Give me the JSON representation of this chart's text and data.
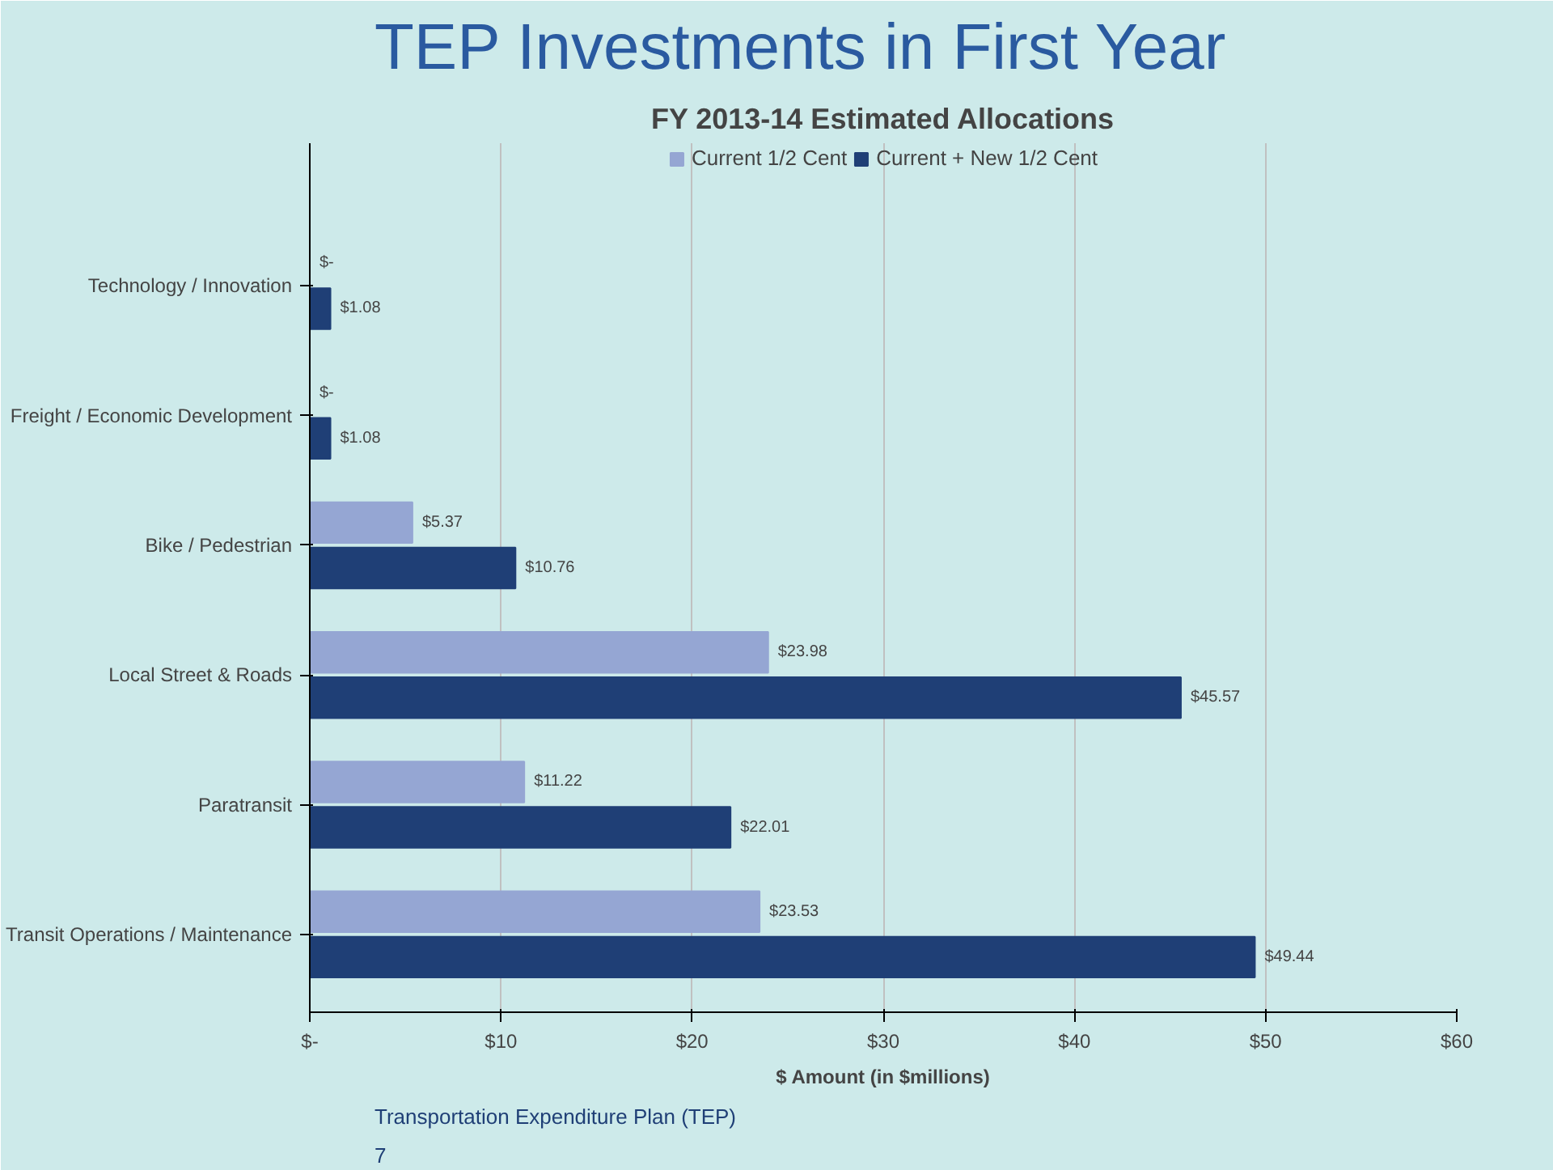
{
  "chart_data": {
    "type": "bar",
    "orientation": "horizontal",
    "title": "TEP Investments in First Year",
    "subtitle": "FY 2013-14 Estimated Allocations",
    "xlabel": "$ Amount (in $millions)",
    "categories": [
      "Technology / Innovation",
      "Freight / Economic Development",
      "Bike / Pedestrian",
      "Local Street & Roads",
      "Paratransit",
      "Transit Operations / Maintenance"
    ],
    "series": [
      {
        "name": "Current 1/2 Cent",
        "color": "#95a6d3",
        "values": [
          0,
          0,
          5.37,
          23.98,
          11.22,
          23.53
        ],
        "value_labels": [
          "$-",
          "$-",
          "$5.37",
          "$23.98",
          "$11.22",
          "$23.53"
        ]
      },
      {
        "name": "Current + New 1/2 Cent",
        "color": "#1f3f76",
        "values": [
          1.08,
          1.08,
          10.76,
          45.57,
          22.01,
          49.44
        ],
        "value_labels": [
          "$1.08",
          "$1.08",
          "$10.76",
          "$45.57",
          "$22.01",
          "$49.44"
        ]
      }
    ],
    "xlim": [
      0,
      60
    ],
    "xticks": [
      {
        "value": 0,
        "label": "$-"
      },
      {
        "value": 10,
        "label": "$10"
      },
      {
        "value": 20,
        "label": "$20"
      },
      {
        "value": 30,
        "label": "$30"
      },
      {
        "value": 40,
        "label": "$40"
      },
      {
        "value": 50,
        "label": "$50"
      },
      {
        "value": 60,
        "label": "$60"
      }
    ],
    "grid": "x",
    "legend": "top",
    "annotations": [
      "Transportation Expenditure Plan (TEP)",
      "7"
    ]
  }
}
